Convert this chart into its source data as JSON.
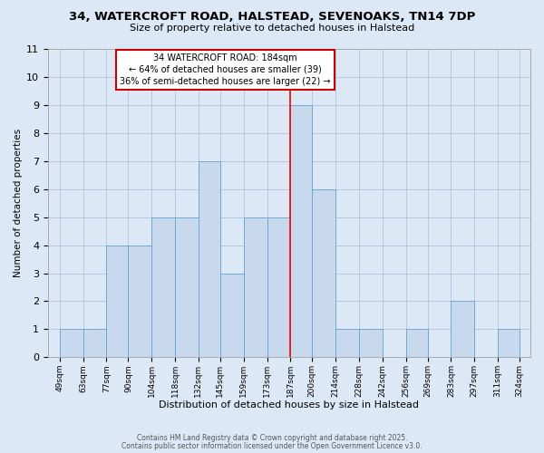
{
  "title": "34, WATERCROFT ROAD, HALSTEAD, SEVENOAKS, TN14 7DP",
  "subtitle": "Size of property relative to detached houses in Halstead",
  "xlabel": "Distribution of detached houses by size in Halstead",
  "ylabel": "Number of detached properties",
  "bin_edges": [
    49,
    63,
    77,
    90,
    104,
    118,
    132,
    145,
    159,
    173,
    187,
    200,
    214,
    228,
    242,
    256,
    269,
    283,
    297,
    311,
    324
  ],
  "bar_heights": [
    1,
    1,
    4,
    4,
    5,
    5,
    7,
    3,
    5,
    5,
    9,
    6,
    1,
    1,
    0,
    1,
    0,
    2,
    0,
    1
  ],
  "bar_color": "#c8d9ee",
  "bar_edge_color": "#6fa8d4",
  "red_line_x": 187,
  "ylim_max": 11,
  "yticks": [
    0,
    1,
    2,
    3,
    4,
    5,
    6,
    7,
    8,
    9,
    10,
    11
  ],
  "annotation_title": "34 WATERCROFT ROAD: 184sqm",
  "annotation_line1": "← 64% of detached houses are smaller (39)",
  "annotation_line2": "36% of semi-detached houses are larger (22) →",
  "annotation_box_facecolor": "#ffffff",
  "annotation_box_edgecolor": "#cc0000",
  "grid_color": "#b0c4dc",
  "bg_color": "#dce8f5",
  "footer1": "Contains HM Land Registry data © Crown copyright and database right 2025.",
  "footer2": "Contains public sector information licensed under the Open Government Licence v3.0.",
  "title_fontsize": 9.5,
  "subtitle_fontsize": 8.0,
  "xlabel_fontsize": 8.0,
  "ylabel_fontsize": 7.5,
  "xtick_fontsize": 6.5,
  "ytick_fontsize": 8.0,
  "annotation_fontsize": 7.0,
  "footer_fontsize": 5.5
}
